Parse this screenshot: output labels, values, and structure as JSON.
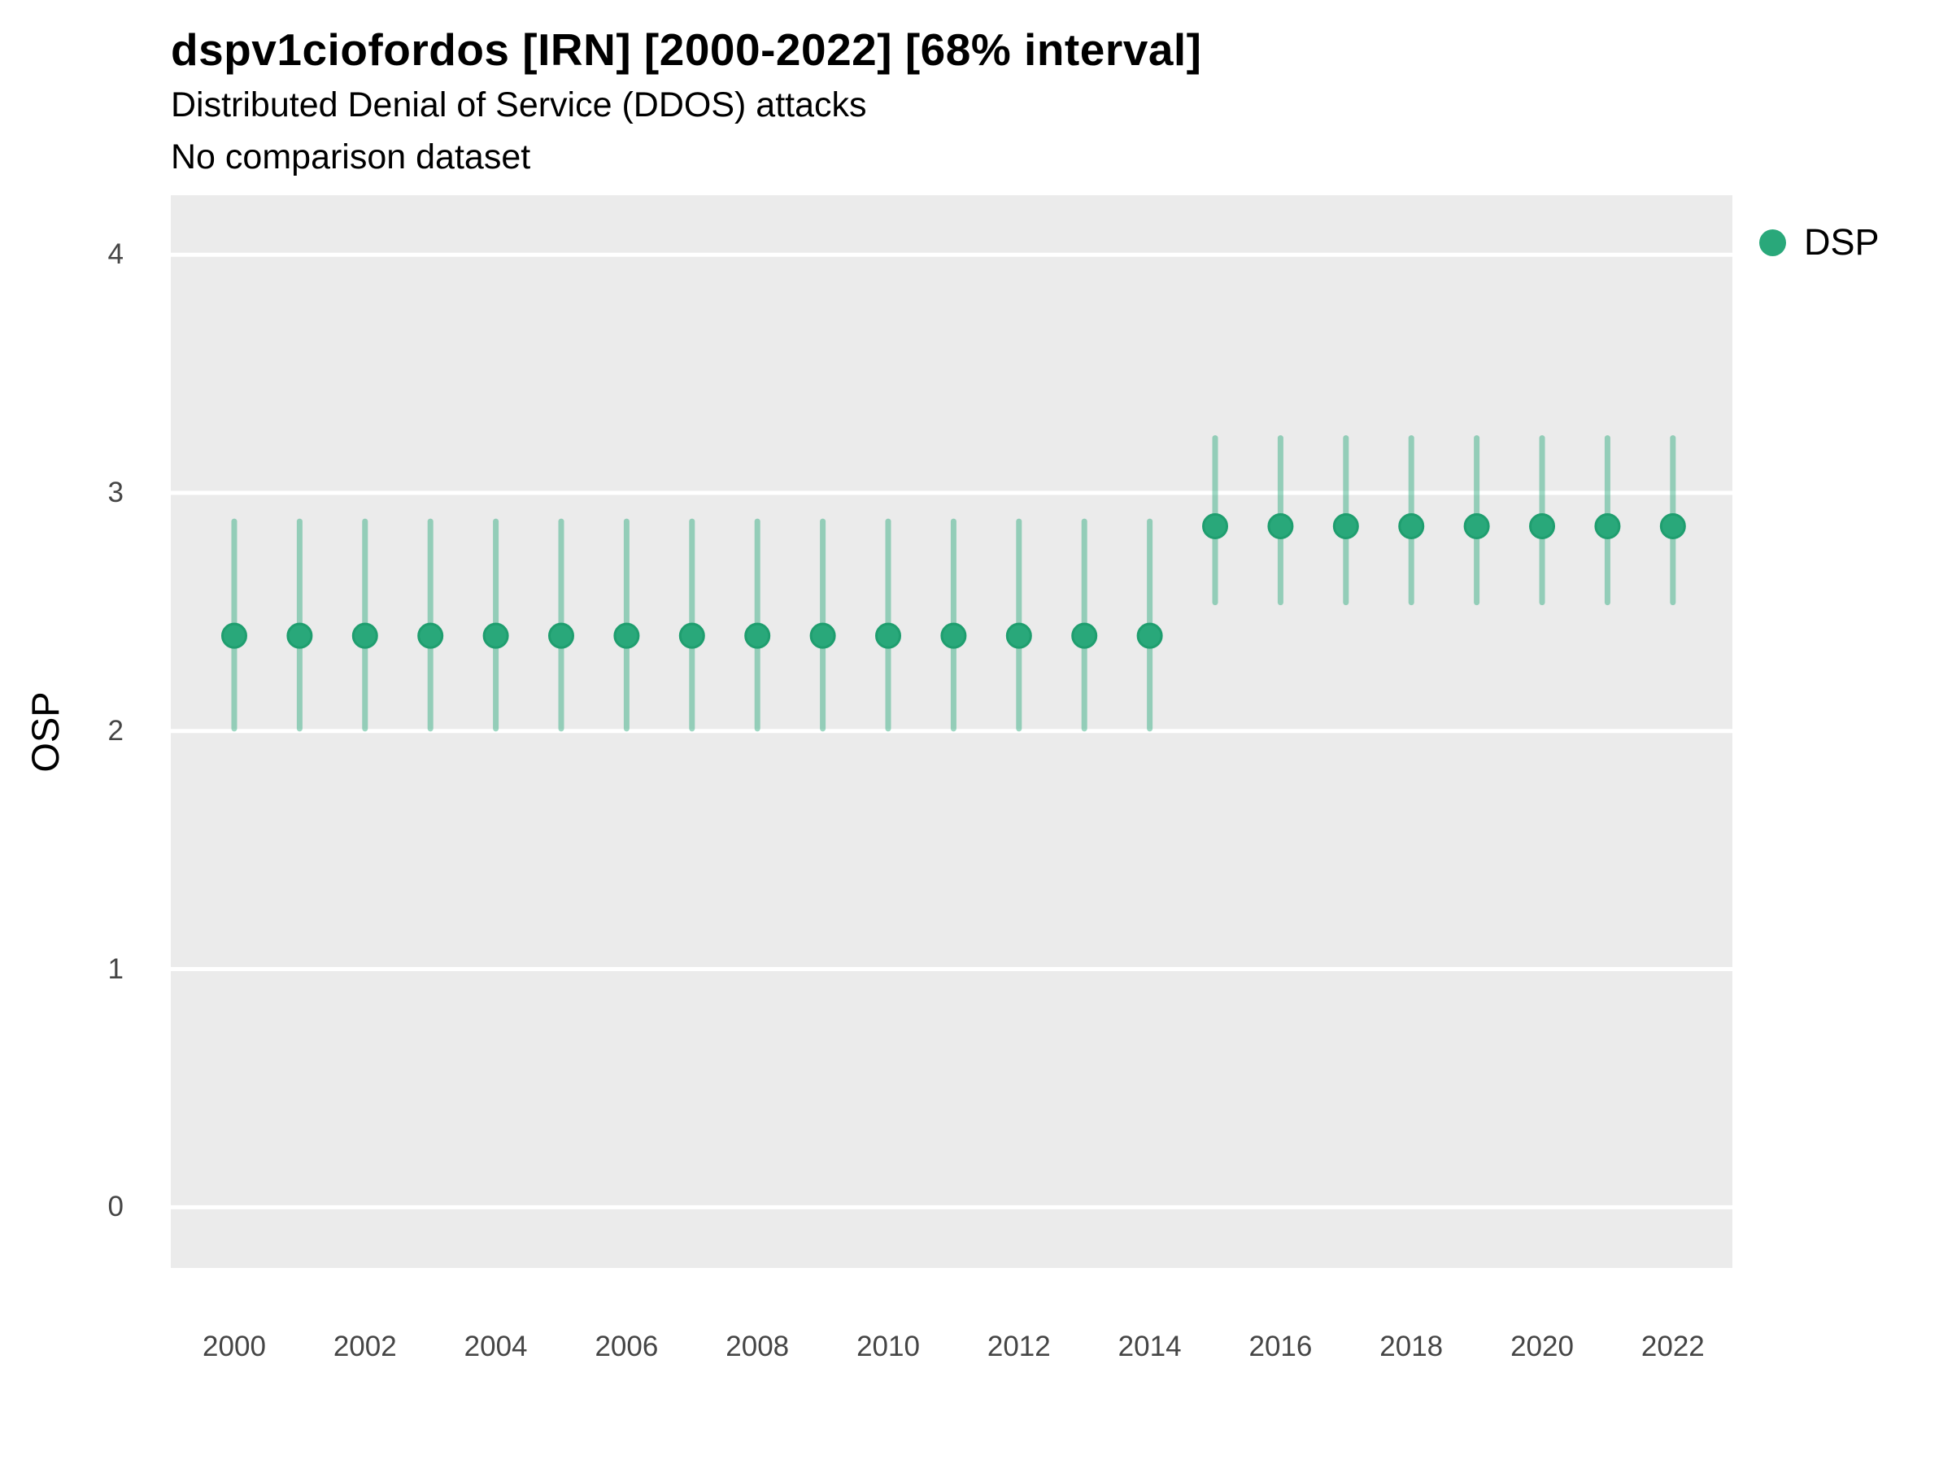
{
  "header": {
    "title": "dspv1ciofordos [IRN] [2000-2022] [68% interval]",
    "subtitle": "Distributed Denial of Service (DDOS) attacks",
    "comparison_note": "No comparison dataset"
  },
  "legend": {
    "position": "right",
    "items": [
      {
        "label": "DSP",
        "color": "#29a87a",
        "marker": "circle"
      }
    ]
  },
  "colors": {
    "point_fill": "#29a87a",
    "point_stroke": "#1f9e6f",
    "range_line": "rgba(41, 168, 122, 0.45)",
    "panel_background": "#ebebeb",
    "gridline": "#ffffff",
    "axis_tick_text": "#454545",
    "title_text": "#000000"
  },
  "chart_data": {
    "type": "pointrange",
    "title": "dspv1ciofordos [IRN] [2000-2022] [68% interval]",
    "subtitle": "Distributed Denial of Service (DDOS) attacks",
    "note": "No comparison dataset",
    "xlabel": "",
    "ylabel": "OSP",
    "interval_label": "68% interval",
    "grid": "horizontal-major-only",
    "legend_position": "right",
    "xlim": [
      1999.03,
      2022.91
    ],
    "ylim": [
      -0.255,
      4.25
    ],
    "xticks": [
      2000,
      2002,
      2004,
      2006,
      2008,
      2010,
      2012,
      2014,
      2016,
      2018,
      2020,
      2022
    ],
    "yticks": [
      0,
      1,
      2,
      3,
      4
    ],
    "x": [
      2000,
      2001,
      2002,
      2003,
      2004,
      2005,
      2006,
      2007,
      2008,
      2009,
      2010,
      2011,
      2012,
      2013,
      2014,
      2015,
      2016,
      2017,
      2018,
      2019,
      2020,
      2021,
      2022
    ],
    "series": [
      {
        "name": "DSP",
        "points": [
          2.4,
          2.4,
          2.4,
          2.4,
          2.4,
          2.4,
          2.4,
          2.4,
          2.4,
          2.4,
          2.4,
          2.4,
          2.4,
          2.4,
          2.4,
          2.86,
          2.86,
          2.86,
          2.86,
          2.86,
          2.86,
          2.86,
          2.86
        ],
        "lo": [
          2.01,
          2.01,
          2.01,
          2.01,
          2.01,
          2.01,
          2.01,
          2.01,
          2.01,
          2.01,
          2.01,
          2.01,
          2.01,
          2.01,
          2.01,
          2.54,
          2.54,
          2.54,
          2.54,
          2.54,
          2.54,
          2.54,
          2.54
        ],
        "hi": [
          2.88,
          2.88,
          2.88,
          2.88,
          2.88,
          2.88,
          2.88,
          2.88,
          2.88,
          2.88,
          2.88,
          2.88,
          2.88,
          2.88,
          2.88,
          3.23,
          3.23,
          3.23,
          3.23,
          3.23,
          3.23,
          3.23,
          3.23
        ]
      }
    ]
  }
}
